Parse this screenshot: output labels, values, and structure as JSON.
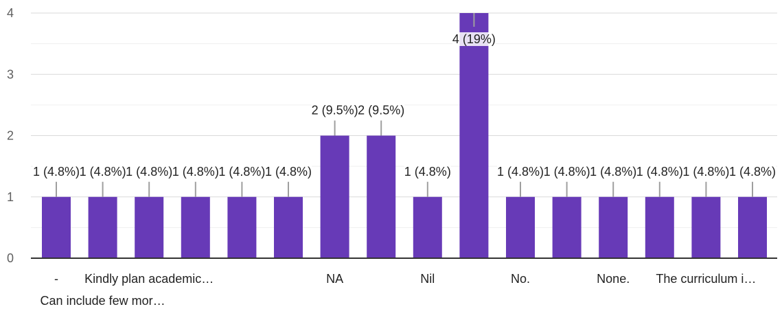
{
  "chart_data": {
    "type": "bar",
    "title": "",
    "xlabel": "",
    "ylabel": "",
    "ylim": [
      0,
      4
    ],
    "yticks": [
      "0",
      "1",
      "2",
      "3",
      "4"
    ],
    "grid": true,
    "bar_color": "#673ab7",
    "categories": [
      "-",
      "Can include few mor…",
      "Kindly plan academic…",
      "",
      "",
      "",
      "NA",
      "",
      "Nil",
      "",
      "No.",
      "",
      "None.",
      "",
      "The curriculum i…",
      ""
    ],
    "values": [
      1,
      1,
      1,
      1,
      1,
      1,
      2,
      2,
      1,
      4,
      1,
      1,
      1,
      1,
      1,
      1
    ],
    "data_labels": [
      "1 (4.8%)",
      "1 (4.8%)",
      "1 (4.8%)",
      "1 (4.8%)",
      "1 (4.8%)",
      "1 (4.8%)",
      "2 (9.5%)",
      "2 (9.5%)",
      "1 (4.8%)",
      "4 (19%)",
      "1 (4.8%)",
      "1 (4.8%)",
      "1 (4.8%)",
      "1 (4.8%)",
      "1 (4.8%)",
      "1 (4.8%)"
    ]
  }
}
